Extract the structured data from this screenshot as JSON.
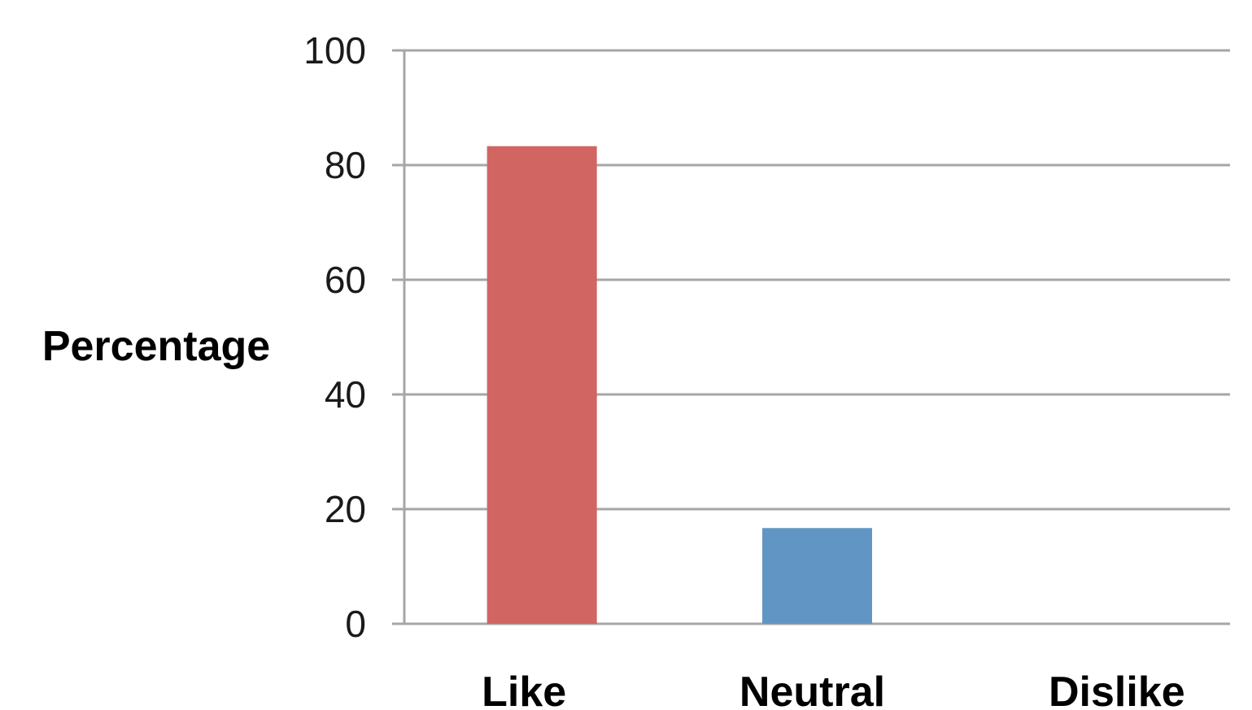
{
  "chart_data": {
    "type": "bar",
    "title": "",
    "xlabel": "",
    "ylabel": "Percentage",
    "categories": [
      "Like",
      "Neutral",
      "Dislike"
    ],
    "values": [
      83.3,
      16.7,
      0
    ],
    "colors": [
      "#d06562",
      "#6196c4",
      "#9bbb59"
    ],
    "ylim": [
      0,
      100
    ],
    "yticks": [
      "0",
      "20",
      "40",
      "60",
      "80",
      "100"
    ],
    "grid": true,
    "legend": "none"
  }
}
